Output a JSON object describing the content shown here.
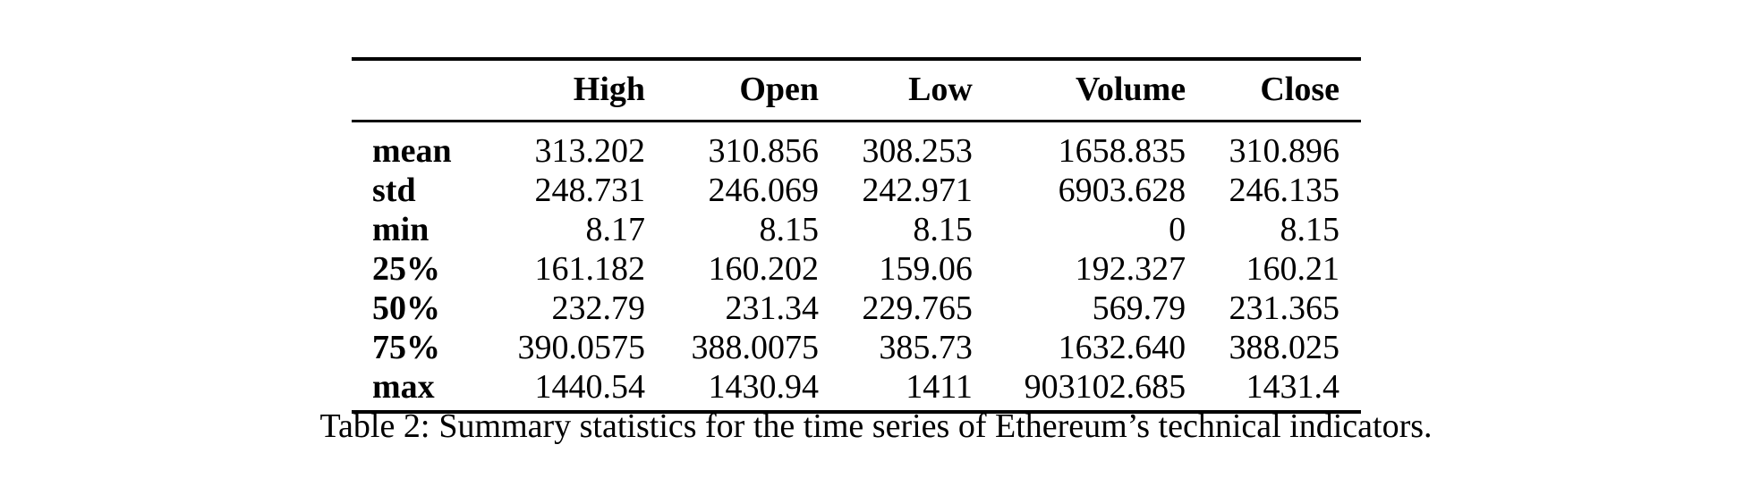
{
  "table": {
    "columns": [
      "",
      "High",
      "Open",
      "Low",
      "Volume",
      "Close"
    ],
    "rows": [
      {
        "label": "mean",
        "values": [
          "313.202",
          "310.856",
          "308.253",
          "1658.835",
          "310.896"
        ]
      },
      {
        "label": "std",
        "values": [
          "248.731",
          "246.069",
          "242.971",
          "6903.628",
          "246.135"
        ]
      },
      {
        "label": "min",
        "values": [
          "8.17",
          "8.15",
          "8.15",
          "0",
          "8.15"
        ]
      },
      {
        "label": "25%",
        "values": [
          "161.182",
          "160.202",
          "159.06",
          "192.327",
          "160.21"
        ]
      },
      {
        "label": "50%",
        "values": [
          "232.79",
          "231.34",
          "229.765",
          "569.79",
          "231.365"
        ]
      },
      {
        "label": "75%",
        "values": [
          "390.0575",
          "388.0075",
          "385.73",
          "1632.640",
          "388.025"
        ]
      },
      {
        "label": "max",
        "values": [
          "1440.54",
          "1430.94",
          "1411",
          "903102.685",
          "1431.4"
        ]
      }
    ]
  },
  "caption": {
    "prefix": "Table 2:",
    "text": "Summary statistics for the time series of Ethereum’s technical indicators."
  }
}
